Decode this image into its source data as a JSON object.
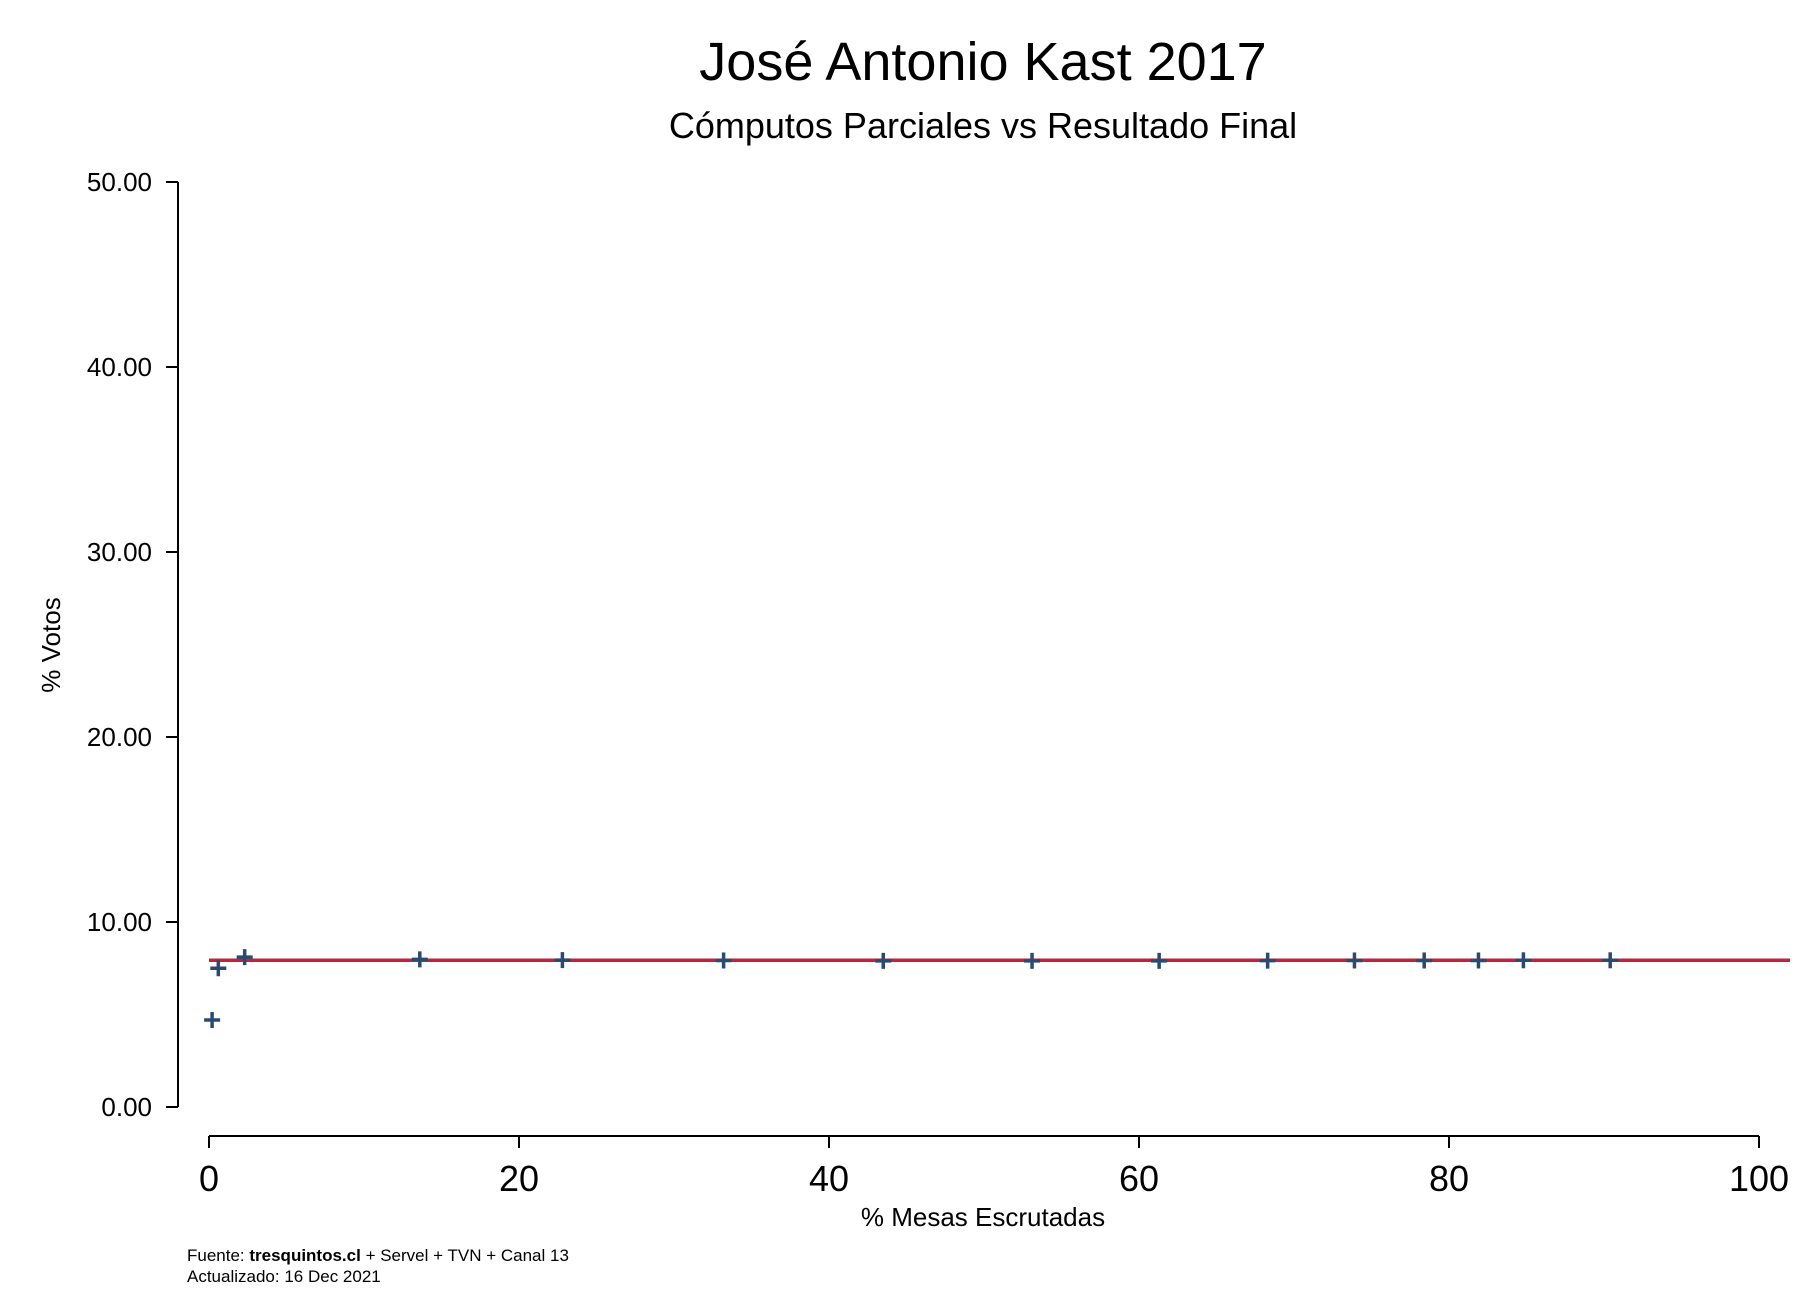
{
  "chart_data": {
    "type": "scatter",
    "title": "José Antonio Kast 2017",
    "subtitle": "Cómputos Parciales vs Resultado Final",
    "xlabel": "% Mesas Escrutadas",
    "ylabel": "% Votos",
    "xlim": [
      0,
      100
    ],
    "ylim": [
      0,
      50
    ],
    "x_ticks": [
      "0",
      "20",
      "40",
      "60",
      "80",
      "100"
    ],
    "y_ticks": [
      "0.00",
      "10.00",
      "20.00",
      "30.00",
      "40.00",
      "50.00"
    ],
    "grid": false,
    "legend": "none",
    "marker": "plus",
    "colors": {
      "points": "#2a4a72",
      "reference_line": "#c0243a"
    },
    "final_result": 7.93,
    "points": [
      {
        "x": 0.2,
        "y": 4.7
      },
      {
        "x": 0.6,
        "y": 7.5
      },
      {
        "x": 2.3,
        "y": 8.1
      },
      {
        "x": 13.6,
        "y": 7.98
      },
      {
        "x": 22.8,
        "y": 7.94
      },
      {
        "x": 33.2,
        "y": 7.92
      },
      {
        "x": 43.5,
        "y": 7.9
      },
      {
        "x": 53.1,
        "y": 7.9
      },
      {
        "x": 61.3,
        "y": 7.9
      },
      {
        "x": 68.3,
        "y": 7.91
      },
      {
        "x": 73.9,
        "y": 7.92
      },
      {
        "x": 78.4,
        "y": 7.92
      },
      {
        "x": 81.9,
        "y": 7.92
      },
      {
        "x": 84.8,
        "y": 7.93
      },
      {
        "x": 90.4,
        "y": 7.93
      }
    ]
  },
  "footer": {
    "source_prefix": "Fuente: ",
    "source_site": "tresquintos.cl",
    "source_rest": " + Servel + TVN + Canal 13",
    "updated": "Actualizado: 16 Dec 2021"
  }
}
